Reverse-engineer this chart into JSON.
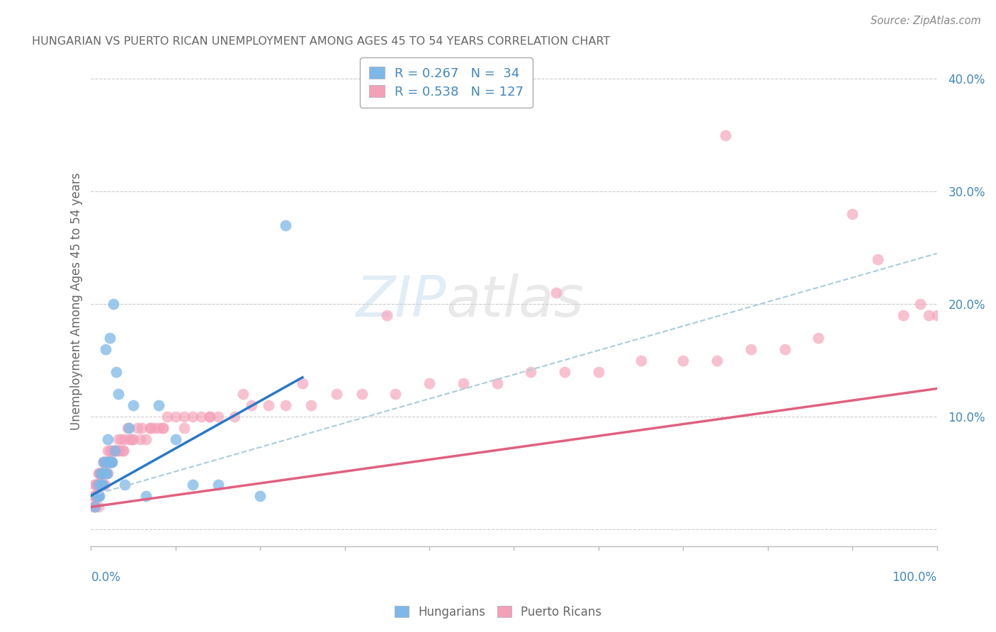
{
  "title": "HUNGARIAN VS PUERTO RICAN UNEMPLOYMENT AMONG AGES 45 TO 54 YEARS CORRELATION CHART",
  "source": "Source: ZipAtlas.com",
  "ylabel": "Unemployment Among Ages 45 to 54 years",
  "hungarian_color": "#7db8e8",
  "puerto_rican_color": "#f4a0b8",
  "hungarian_line_color": "#2878c8",
  "puerto_rican_line_color": "#e06080",
  "dashed_line_color": "#aaccdd",
  "background_color": "#ffffff",
  "grid_color": "#cccccc",
  "title_color": "#666666",
  "axis_label_color": "#4488bb",
  "label_text_color": "#666666",
  "xlim": [
    0.0,
    1.0
  ],
  "ylim": [
    -0.015,
    0.42
  ],
  "ytick_vals": [
    0.0,
    0.1,
    0.2,
    0.3,
    0.4
  ],
  "ytick_labels": [
    "",
    "10.0%",
    "20.0%",
    "30.0%",
    "40.0%"
  ],
  "hung_line_x0": 0.0,
  "hung_line_y0": 0.03,
  "hung_line_x1": 0.25,
  "hung_line_y1": 0.135,
  "pr_line_x0": 0.0,
  "pr_line_y0": 0.02,
  "pr_line_x1": 1.0,
  "pr_line_y1": 0.125,
  "dash_line_x0": 0.0,
  "dash_line_y0": 0.03,
  "dash_line_x1": 1.0,
  "dash_line_y1": 0.245,
  "hung_x": [
    0.005,
    0.007,
    0.008,
    0.009,
    0.01,
    0.011,
    0.012,
    0.013,
    0.014,
    0.015,
    0.016,
    0.017,
    0.018,
    0.019,
    0.02,
    0.021,
    0.022,
    0.023,
    0.024,
    0.025,
    0.026,
    0.028,
    0.03,
    0.032,
    0.04,
    0.045,
    0.05,
    0.065,
    0.08,
    0.1,
    0.12,
    0.15,
    0.2,
    0.23
  ],
  "hung_y": [
    0.02,
    0.03,
    0.03,
    0.04,
    0.03,
    0.05,
    0.04,
    0.05,
    0.04,
    0.06,
    0.05,
    0.16,
    0.06,
    0.05,
    0.08,
    0.06,
    0.17,
    0.06,
    0.06,
    0.06,
    0.2,
    0.07,
    0.14,
    0.12,
    0.04,
    0.09,
    0.11,
    0.03,
    0.11,
    0.08,
    0.04,
    0.04,
    0.03,
    0.27
  ],
  "pr_x": [
    0.003,
    0.004,
    0.005,
    0.005,
    0.006,
    0.006,
    0.007,
    0.007,
    0.008,
    0.008,
    0.009,
    0.009,
    0.01,
    0.01,
    0.011,
    0.011,
    0.012,
    0.012,
    0.013,
    0.013,
    0.014,
    0.015,
    0.015,
    0.016,
    0.016,
    0.017,
    0.017,
    0.018,
    0.018,
    0.019,
    0.02,
    0.02,
    0.021,
    0.022,
    0.023,
    0.024,
    0.025,
    0.026,
    0.028,
    0.03,
    0.032,
    0.034,
    0.036,
    0.038,
    0.04,
    0.043,
    0.046,
    0.05,
    0.055,
    0.06,
    0.065,
    0.07,
    0.075,
    0.08,
    0.085,
    0.09,
    0.1,
    0.11,
    0.12,
    0.13,
    0.14,
    0.15,
    0.17,
    0.19,
    0.21,
    0.23,
    0.26,
    0.29,
    0.32,
    0.36,
    0.4,
    0.44,
    0.48,
    0.52,
    0.56,
    0.6,
    0.65,
    0.7,
    0.74,
    0.78,
    0.82,
    0.86,
    0.9,
    0.93,
    0.96,
    0.98,
    0.99,
    1.0,
    0.75,
    0.55,
    0.35,
    0.25,
    0.18,
    0.14,
    0.11,
    0.085,
    0.07,
    0.058,
    0.048,
    0.038,
    0.032,
    0.028,
    0.024,
    0.021,
    0.019,
    0.017,
    0.015,
    0.014,
    0.013,
    0.012,
    0.011,
    0.01,
    0.009,
    0.008,
    0.008,
    0.007,
    0.007,
    0.006,
    0.006,
    0.005,
    0.005,
    0.005,
    0.004,
    0.004,
    0.004
  ],
  "pr_y": [
    0.02,
    0.02,
    0.03,
    0.02,
    0.04,
    0.03,
    0.04,
    0.03,
    0.04,
    0.03,
    0.04,
    0.02,
    0.05,
    0.03,
    0.05,
    0.04,
    0.05,
    0.04,
    0.05,
    0.04,
    0.05,
    0.04,
    0.06,
    0.05,
    0.04,
    0.06,
    0.05,
    0.06,
    0.05,
    0.06,
    0.07,
    0.05,
    0.06,
    0.07,
    0.06,
    0.07,
    0.06,
    0.07,
    0.07,
    0.07,
    0.08,
    0.07,
    0.08,
    0.07,
    0.08,
    0.09,
    0.08,
    0.08,
    0.09,
    0.09,
    0.08,
    0.09,
    0.09,
    0.09,
    0.09,
    0.1,
    0.1,
    0.09,
    0.1,
    0.1,
    0.1,
    0.1,
    0.1,
    0.11,
    0.11,
    0.11,
    0.11,
    0.12,
    0.12,
    0.12,
    0.13,
    0.13,
    0.13,
    0.14,
    0.14,
    0.14,
    0.15,
    0.15,
    0.15,
    0.16,
    0.16,
    0.17,
    0.28,
    0.24,
    0.19,
    0.2,
    0.19,
    0.19,
    0.35,
    0.21,
    0.19,
    0.13,
    0.12,
    0.1,
    0.1,
    0.09,
    0.09,
    0.08,
    0.08,
    0.07,
    0.07,
    0.07,
    0.06,
    0.06,
    0.06,
    0.06,
    0.06,
    0.05,
    0.05,
    0.05,
    0.05,
    0.05,
    0.05,
    0.04,
    0.04,
    0.04,
    0.04,
    0.04,
    0.04,
    0.03,
    0.03,
    0.03,
    0.04,
    0.03,
    0.03
  ]
}
